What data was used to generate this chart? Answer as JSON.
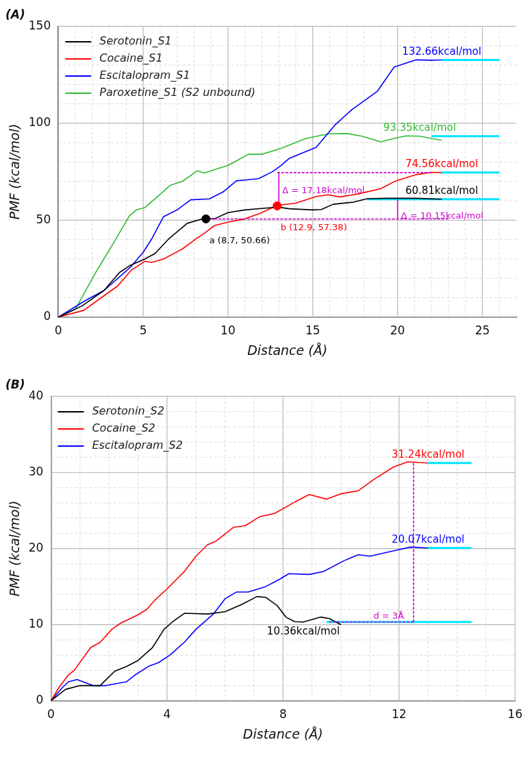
{
  "chart_data": [
    {
      "type": "line",
      "title": "(A)",
      "xlabel": "Distance (Å)",
      "ylabel": "PMF (kcal/mol)",
      "xlim": [
        0,
        27
      ],
      "ylim": [
        0,
        150
      ],
      "xticks": [
        0,
        {
          "value": 1,
          "label": null
        },
        {
          "value": 2,
          "label": null
        },
        {
          "value": 3,
          "label": null
        },
        {
          "value": 4,
          "label": null
        },
        5,
        {
          "value": 6,
          "label": null
        },
        {
          "value": 7,
          "label": null
        },
        {
          "value": 8,
          "label": null
        },
        {
          "value": 9,
          "label": null
        },
        10,
        {
          "value": 11,
          "label": null
        },
        {
          "value": 12,
          "label": null
        },
        {
          "value": 13,
          "label": null
        },
        {
          "value": 14,
          "label": null
        },
        15,
        {
          "value": 16,
          "label": null
        },
        {
          "value": 17,
          "label": null
        },
        {
          "value": 18,
          "label": null
        },
        {
          "value": 19,
          "label": null
        },
        20,
        {
          "value": 21,
          "label": null
        },
        {
          "value": 22,
          "label": null
        },
        {
          "value": 23,
          "label": null
        },
        {
          "value": 24,
          "label": null
        },
        25,
        {
          "value": 26,
          "label": null
        }
      ],
      "yticks": [
        0,
        {
          "value": 10,
          "label": null
        },
        {
          "value": 20,
          "label": null
        },
        {
          "value": 30,
          "label": null
        },
        {
          "value": 40,
          "label": null
        },
        50,
        {
          "value": 60,
          "label": null
        },
        {
          "value": 70,
          "label": null
        },
        {
          "value": 80,
          "label": null
        },
        {
          "value": 90,
          "label": null
        },
        100,
        {
          "value": 110,
          "label": null
        },
        {
          "value": 120,
          "label": null
        },
        {
          "value": 130,
          "label": null
        },
        {
          "value": 140,
          "label": null
        },
        150
      ],
      "grid": true,
      "legend": "top left",
      "series": [
        {
          "name": "Serotonin_S1",
          "color": "#000000",
          "x": [
            0,
            1.4,
            2.7,
            3.6,
            4.2,
            5.1,
            5.7,
            6.5,
            7.6,
            8.6,
            9.2,
            10,
            11,
            12.2,
            13,
            13.6,
            15,
            15.5,
            16.2,
            17.4,
            18.2,
            19.3,
            21.1,
            22.6
          ],
          "values": [
            0,
            5.8,
            13.8,
            23,
            26.5,
            30,
            32.8,
            40.3,
            48.4,
            50.9,
            50.7,
            53.9,
            55.3,
            56.2,
            56.7,
            55.9,
            55.3,
            55.5,
            58.2,
            59.3,
            61.1,
            61.3,
            61.3,
            60.81
          ],
          "value_labels": [
            null,
            null,
            null,
            null,
            null,
            null,
            null,
            null,
            null,
            null,
            null,
            null,
            null,
            null,
            null,
            null,
            null,
            null,
            null,
            null,
            null,
            null,
            null,
            "60.81kcal/mol"
          ]
        },
        {
          "name": "Cocaine_S1",
          "color": "#ff0000",
          "x": [
            0,
            1.5,
            2.4,
            3.5,
            4.3,
            5.1,
            5.5,
            6.2,
            7.3,
            8.1,
            8.6,
            9.2,
            10,
            11,
            11.9,
            12.9,
            14,
            15.2,
            15.9,
            16.6,
            17.7,
            19,
            19.9,
            21.1,
            22,
            22.6
          ],
          "values": [
            0,
            3.5,
            9.2,
            16.1,
            24.2,
            28.8,
            28.2,
            30,
            35.1,
            40.3,
            43.2,
            47.2,
            49,
            50.7,
            53.6,
            57.6,
            58.8,
            62.2,
            63.1,
            62,
            63.6,
            66.2,
            70.3,
            73.5,
            74.7,
            74.56
          ],
          "value_labels": [
            null,
            null,
            null,
            null,
            null,
            null,
            null,
            null,
            null,
            null,
            null,
            null,
            null,
            null,
            null,
            null,
            null,
            null,
            null,
            null,
            null,
            null,
            null,
            null,
            null,
            "74.56kcal/mol"
          ]
        },
        {
          "name": "Escitalopram_S1",
          "color": "#0000ff",
          "x": [
            0,
            1.6,
            2.7,
            4.2,
            5,
            5.5,
            6.2,
            7,
            7.8,
            8.9,
            9.7,
            10.5,
            11.2,
            11.8,
            12.6,
            13.1,
            13.6,
            15.2,
            16.3,
            17.3,
            18.8,
            19.8,
            21.1,
            22,
            22.6
          ],
          "values": [
            0,
            8.6,
            13.8,
            25.3,
            33.4,
            40.3,
            51.8,
            55.3,
            60.5,
            61,
            64.5,
            70.3,
            70.9,
            71.4,
            74.9,
            78,
            81.8,
            87.6,
            99,
            107,
            116.4,
            129,
            132.7,
            132.5,
            132.66
          ],
          "value_labels": [
            null,
            null,
            null,
            null,
            null,
            null,
            null,
            null,
            null,
            null,
            null,
            null,
            null,
            null,
            null,
            null,
            null,
            null,
            null,
            null,
            null,
            null,
            null,
            null,
            "132.66kcal/mol"
          ]
        },
        {
          "name": "Paroxetine_S1 (S2 unbound)",
          "color": "#33bb33",
          "x": [
            0,
            1,
            2.2,
            3.1,
            4.2,
            4.6,
            5.1,
            5.7,
            6.6,
            7.3,
            8.2,
            8.6,
            9.2,
            10,
            10.5,
            11.2,
            12,
            13.1,
            14.6,
            15.9,
            17,
            17.9,
            19,
            19.8,
            20.5,
            21.3,
            22,
            22.6
          ],
          "values": [
            0,
            4,
            23,
            36,
            52.4,
            55.3,
            56.5,
            61,
            68,
            70,
            75.5,
            74.3,
            76,
            78.3,
            80.6,
            84,
            84,
            87,
            92.2,
            94.5,
            94.7,
            93.3,
            90.4,
            92.2,
            93.5,
            93.35,
            92.2,
            91.2
          ],
          "value_labels": [
            null,
            null,
            null,
            null,
            null,
            null,
            null,
            null,
            null,
            null,
            null,
            null,
            null,
            null,
            null,
            null,
            null,
            null,
            null,
            null,
            null,
            null,
            null,
            null,
            null,
            "93.35kcal/mol",
            null,
            null
          ]
        },
        {
          "type": "scatter",
          "marker": "circle",
          "color": "#000000",
          "x": [
            8.7
          ],
          "values": [
            50.66
          ]
        },
        {
          "type": "scatter",
          "marker": "circle",
          "color": "#ff0000",
          "x": [
            12.9
          ],
          "values": [
            57.38
          ]
        },
        {
          "type": "line",
          "line_style": "dashed",
          "color": "#cc00cc",
          "x": [
            8.7,
            23
          ],
          "values": [
            50.66,
            50.66
          ]
        },
        {
          "type": "line",
          "line_style": "dashed",
          "color": "#cc00cc",
          "x": [
            12.9,
            22
          ],
          "values": [
            74.56,
            74.56
          ]
        },
        {
          "type": "line",
          "line_style": "solid",
          "color": "#cc00cc",
          "x": [
            13,
            13
          ],
          "values": [
            57.38,
            74.56
          ]
        },
        {
          "type": "line",
          "line_style": "solid",
          "color": "#cc00cc",
          "x": [
            20,
            20
          ],
          "values": [
            50.66,
            60.81
          ]
        },
        {
          "type": "line",
          "line_style": "solid",
          "color": "#00e5ff",
          "x": [
            18.2,
            26
          ],
          "values": [
            60.81,
            60.81
          ]
        },
        {
          "type": "line",
          "line_style": "solid",
          "color": "#00e5ff",
          "x": [
            22.6,
            26
          ],
          "values": [
            74.56,
            74.56
          ]
        },
        {
          "type": "line",
          "line_style": "solid",
          "color": "#00e5ff",
          "x": [
            22,
            26
          ],
          "values": [
            93.35,
            93.35
          ]
        },
        {
          "type": "line",
          "line_style": "solid",
          "color": "#00e5ff",
          "x": [
            22.6,
            26
          ],
          "values": [
            132.66,
            132.66
          ]
        }
      ],
      "annotations": [
        {
          "text": "a (8.7, 50.66)",
          "x": 8.7,
          "y": 50.66
        },
        {
          "text": "b (12.9, 57.38)",
          "x": 12.9,
          "y": 57.38
        },
        {
          "text": "Δ = 17.18kcal/mol",
          "x": 13,
          "y": 71
        },
        {
          "text": "Δ = 10.15kcal/mol",
          "x": 20,
          "y": 58
        }
      ]
    },
    {
      "type": "line",
      "title": "(B)",
      "xlabel": "Distance (Å)",
      "ylabel": "PMF (kcal/mol)",
      "xlim": [
        0,
        16
      ],
      "ylim": [
        0,
        40
      ],
      "xticks": [
        0,
        {
          "value": 1,
          "label": null
        },
        {
          "value": 2,
          "label": null
        },
        {
          "value": 3,
          "label": null
        },
        4,
        {
          "value": 5,
          "label": null
        },
        {
          "value": 6,
          "label": null
        },
        {
          "value": 7,
          "label": null
        },
        8,
        {
          "value": 9,
          "label": null
        },
        {
          "value": 10,
          "label": null
        },
        {
          "value": 11,
          "label": null
        },
        12,
        {
          "value": 13,
          "label": null
        },
        {
          "value": 14,
          "label": null
        },
        {
          "value": 15,
          "label": null
        },
        16
      ],
      "yticks": [
        0,
        {
          "value": 2,
          "label": null
        },
        {
          "value": 4,
          "label": null
        },
        {
          "value": 6,
          "label": null
        },
        {
          "value": 8,
          "label": null
        },
        10,
        {
          "value": 12,
          "label": null
        },
        {
          "value": 14,
          "label": null
        },
        {
          "value": 16,
          "label": null
        },
        {
          "value": 18,
          "label": null
        },
        20,
        {
          "value": 22,
          "label": null
        },
        {
          "value": 24,
          "label": null
        },
        {
          "value": 26,
          "label": null
        },
        {
          "value": 28,
          "label": null
        },
        30,
        {
          "value": 32,
          "label": null
        },
        {
          "value": 34,
          "label": null
        },
        {
          "value": 36,
          "label": null
        },
        {
          "value": 38,
          "label": null
        },
        40
      ],
      "grid": true,
      "legend": "top left",
      "series": [
        {
          "name": "Serotonin_S2",
          "color": "#000000",
          "x": [
            0,
            0.5,
            1,
            1.7,
            1.8,
            2.2,
            2.6,
            3,
            3.5,
            3.9,
            4.2,
            4.6,
            5.4,
            6,
            6.6,
            7.1,
            7.4,
            7.8,
            8.1,
            8.4,
            8.7,
            9.3,
            9.6,
            10
          ],
          "values": [
            0,
            1.5,
            2,
            2,
            2.4,
            3.9,
            4.5,
            5.3,
            7,
            9.4,
            10.4,
            11.5,
            11.4,
            11.7,
            12.7,
            13.7,
            13.6,
            12.5,
            11,
            10.4,
            10.36,
            11,
            10.8,
            10
          ],
          "value_labels": [
            null,
            null,
            null,
            null,
            null,
            null,
            null,
            null,
            null,
            null,
            null,
            null,
            null,
            null,
            null,
            null,
            null,
            null,
            null,
            null,
            "10.36kcal/mol",
            null,
            null,
            null
          ]
        },
        {
          "name": "Cocaine_S2",
          "color": "#ff0000",
          "x": [
            0,
            0.25,
            0.6,
            0.8,
            1.37,
            1.7,
            2.1,
            2.4,
            3,
            3.3,
            3.6,
            4,
            4.6,
            5,
            5.4,
            5.7,
            6.3,
            6.7,
            7.2,
            7.7,
            8.4,
            8.9,
            9.5,
            10,
            10.6,
            11.1,
            11.8,
            12.3,
            13
          ],
          "values": [
            0,
            1.6,
            3.4,
            4,
            7,
            7.7,
            9.4,
            10.2,
            11.3,
            12,
            13.3,
            14.7,
            17,
            19,
            20.5,
            21,
            22.8,
            23,
            24.2,
            24.6,
            26.1,
            27.1,
            26.5,
            27.2,
            27.6,
            29,
            30.7,
            31.4,
            31.24
          ],
          "value_labels": [
            null,
            null,
            null,
            null,
            null,
            null,
            null,
            null,
            null,
            null,
            null,
            null,
            null,
            null,
            null,
            null,
            null,
            null,
            null,
            null,
            null,
            null,
            null,
            null,
            null,
            null,
            null,
            null,
            "31.24kcal/mol"
          ]
        },
        {
          "name": "Escitalopram_S2",
          "color": "#0000ff",
          "x": [
            0,
            0.36,
            0.6,
            0.9,
            1.45,
            1.9,
            2.6,
            2.9,
            3.4,
            3.7,
            4.1,
            4.6,
            5,
            5.6,
            6,
            6.4,
            6.8,
            7.4,
            7.9,
            8.2,
            8.9,
            9.4,
            10.1,
            10.6,
            11,
            11.8,
            12.4,
            13
          ],
          "values": [
            0,
            1.6,
            2.5,
            2.8,
            2,
            2,
            2.5,
            3.4,
            4.6,
            5,
            6,
            7.7,
            9.4,
            11.4,
            13.4,
            14.3,
            14.3,
            15,
            16,
            16.7,
            16.6,
            17,
            18.4,
            19.2,
            19,
            19.7,
            20.2,
            20.07
          ],
          "value_labels": [
            null,
            null,
            null,
            null,
            null,
            null,
            null,
            null,
            null,
            null,
            null,
            null,
            null,
            null,
            null,
            null,
            null,
            null,
            null,
            null,
            null,
            null,
            null,
            null,
            null,
            null,
            null,
            "20.07kcal/mol"
          ]
        },
        {
          "type": "line",
          "line_style": "dashed",
          "color": "#cc00cc",
          "x": [
            12.5,
            12.5
          ],
          "values": [
            10.36,
            31.24
          ]
        },
        {
          "type": "line",
          "line_style": "dashed",
          "color": "#cc00cc",
          "x": [
            9.6,
            12.5
          ],
          "values": [
            10.36,
            10.36
          ]
        },
        {
          "type": "line",
          "line_style": "solid",
          "color": "#00e5ff",
          "x": [
            13,
            14.5
          ],
          "values": [
            31.24,
            31.24
          ]
        },
        {
          "type": "line",
          "line_style": "solid",
          "color": "#00e5ff",
          "x": [
            13,
            14.5
          ],
          "values": [
            20.07,
            20.07
          ]
        },
        {
          "type": "line",
          "line_style": "solid",
          "color": "#00e5ff",
          "x": [
            9.5,
            14.5
          ],
          "values": [
            10.36,
            10.36
          ]
        }
      ],
      "annotations": [
        {
          "text": "d = 3Å",
          "x": 11,
          "y": 10.36
        }
      ]
    }
  ]
}
